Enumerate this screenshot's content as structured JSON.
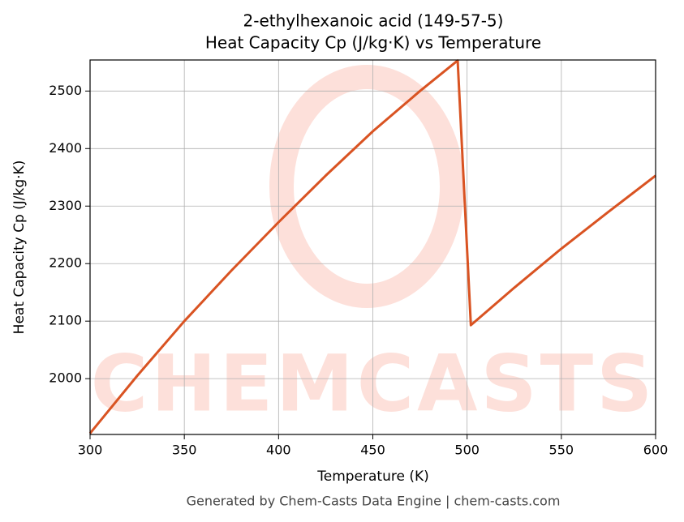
{
  "chart_data": {
    "type": "line",
    "title": "2-ethylhexanoic acid (149-57-5)",
    "subtitle": "Heat Capacity Cp (J/kg·K) vs Temperature",
    "x_label": "Temperature (K)",
    "y_label": "Heat Capacity Cp (J/kg·K)",
    "footer": "Generated by Chem-Casts Data Engine | chem-casts.com",
    "watermark": "CHEMCASTS",
    "x": [
      300,
      325,
      350,
      375,
      400,
      425,
      450,
      475,
      495,
      502,
      525,
      550,
      575,
      600
    ],
    "series": [
      {
        "name": "Cp",
        "color": "#d95322",
        "values": [
          1905,
          2005,
          2100,
          2188,
          2272,
          2353,
          2430,
          2500,
          2553,
          2093,
          2158,
          2226,
          2290,
          2353
        ]
      }
    ],
    "xlim": [
      300,
      600
    ],
    "xticks": [
      300,
      350,
      400,
      450,
      500,
      550,
      600
    ],
    "ylim": [
      1903,
      2554
    ],
    "yticks": [
      2000,
      2100,
      2200,
      2300,
      2400,
      2500
    ],
    "grid": true
  }
}
